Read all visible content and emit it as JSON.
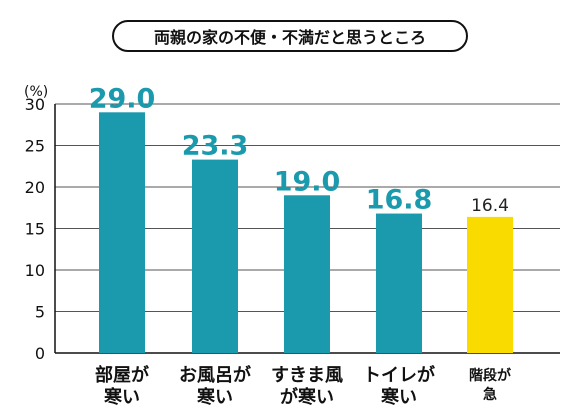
{
  "chart_data": {
    "type": "bar",
    "title": "両親の家の不便・不満だと思うところ",
    "ylabel": "(%)",
    "ylim": [
      0,
      30
    ],
    "yticks": [
      0,
      5,
      10,
      15,
      20,
      25,
      30
    ],
    "grid": true,
    "categories": [
      [
        "部屋が",
        "寒い"
      ],
      [
        "お風呂が",
        "寒い"
      ],
      [
        "すきま風",
        "が寒い"
      ],
      [
        "トイレが",
        "寒い"
      ],
      [
        "階段が",
        "急"
      ]
    ],
    "values": [
      29.0,
      23.3,
      19.0,
      16.8,
      16.4
    ],
    "value_labels": [
      "29.0",
      "23.3",
      "19.0",
      "16.8",
      "16.4"
    ],
    "colors": {
      "bar": "#1a9aac",
      "highlight": "#fadb00",
      "value_label": "#1a9aac",
      "highlight_label": "#222222",
      "grid": "#555555",
      "text": "#111111"
    },
    "highlight_index": 4
  }
}
